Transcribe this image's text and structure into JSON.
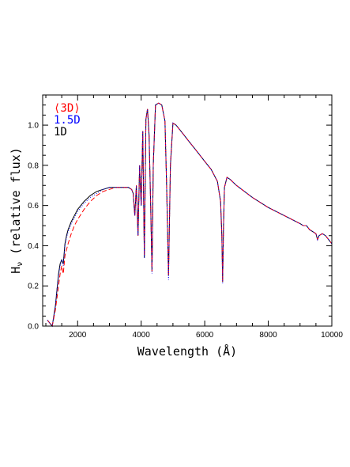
{
  "chart_data": {
    "type": "line",
    "title": "",
    "xlabel": "Wavelength (Å)",
    "ylabel_main": "H",
    "ylabel_sub": "ν",
    "ylabel_rest": " (relative flux)",
    "xlim": [
      900,
      10000
    ],
    "ylim": [
      0.0,
      1.15
    ],
    "x_ticks": [
      2000,
      4000,
      6000,
      8000,
      10000
    ],
    "x_tick_labels": [
      "2000",
      "4000",
      "6000",
      "8000",
      "10000"
    ],
    "y_ticks": [
      0.0,
      0.2,
      0.4,
      0.6,
      0.8,
      1.0
    ],
    "y_tick_labels": [
      "0.0",
      "0.2",
      "0.4",
      "0.6",
      "0.8",
      "1.0"
    ],
    "grid": false,
    "legend_position": "top-left",
    "series": [
      {
        "name": "⟨3D⟩",
        "color": "#ff0000",
        "style": "dashed",
        "x": [
          1050,
          1100,
          1150,
          1200,
          1250,
          1300,
          1350,
          1400,
          1450,
          1500,
          1550,
          1600,
          1650,
          1700,
          1800,
          1900,
          2000,
          2200,
          2400,
          2600,
          2800,
          3000,
          3200,
          3400,
          3600,
          3700,
          3750,
          3800,
          3850,
          3900,
          3950,
          4000,
          4050,
          4100,
          4150,
          4200,
          4250,
          4300,
          4340,
          4380,
          4450,
          4550,
          4650,
          4750,
          4800,
          4861,
          4920,
          5000,
          5100,
          5300,
          5500,
          5800,
          6000,
          6200,
          6400,
          6500,
          6540,
          6563,
          6590,
          6620,
          6700,
          6800,
          7000,
          7500,
          8000,
          8500,
          9000,
          9100,
          9200,
          9300,
          9400,
          9500,
          9550,
          9600,
          9700,
          9800,
          9900,
          10000
        ],
        "y": [
          0.03,
          0.02,
          0.01,
          0.0,
          0.04,
          0.08,
          0.14,
          0.2,
          0.26,
          0.3,
          0.26,
          0.35,
          0.38,
          0.41,
          0.46,
          0.5,
          0.53,
          0.58,
          0.62,
          0.65,
          0.67,
          0.68,
          0.69,
          0.69,
          0.69,
          0.68,
          0.66,
          0.55,
          0.7,
          0.45,
          0.8,
          0.6,
          0.97,
          0.35,
          1.03,
          1.08,
          0.95,
          0.6,
          0.27,
          0.8,
          1.1,
          1.11,
          1.1,
          1.02,
          0.7,
          0.25,
          0.8,
          1.01,
          1.0,
          0.96,
          0.92,
          0.86,
          0.82,
          0.78,
          0.72,
          0.62,
          0.45,
          0.22,
          0.5,
          0.69,
          0.74,
          0.73,
          0.7,
          0.64,
          0.59,
          0.55,
          0.51,
          0.5,
          0.5,
          0.48,
          0.47,
          0.46,
          0.43,
          0.45,
          0.46,
          0.45,
          0.43,
          0.41
        ]
      },
      {
        "name": "1.5D",
        "color": "#0000ff",
        "style": "dotted",
        "x": [
          1050,
          1100,
          1150,
          1200,
          1250,
          1300,
          1350,
          1400,
          1450,
          1500,
          1550,
          1600,
          1650,
          1700,
          1800,
          1900,
          2000,
          2200,
          2400,
          2600,
          2800,
          3000,
          3200,
          3400,
          3600,
          3700,
          3750,
          3800,
          3850,
          3900,
          3950,
          4000,
          4050,
          4100,
          4150,
          4200,
          4250,
          4300,
          4340,
          4380,
          4450,
          4550,
          4650,
          4750,
          4800,
          4861,
          4920,
          5000,
          5100,
          5300,
          5500,
          5800,
          6000,
          6200,
          6400,
          6500,
          6540,
          6563,
          6590,
          6620,
          6700,
          6800,
          7000,
          7500,
          8000,
          8500,
          9000,
          9100,
          9200,
          9300,
          9400,
          9500,
          9550,
          9600,
          9700,
          9800,
          9900,
          10000
        ],
        "y": [
          0.03,
          0.02,
          0.01,
          0.0,
          0.05,
          0.1,
          0.18,
          0.25,
          0.3,
          0.33,
          0.3,
          0.4,
          0.44,
          0.47,
          0.51,
          0.54,
          0.57,
          0.61,
          0.64,
          0.66,
          0.68,
          0.69,
          0.69,
          0.69,
          0.69,
          0.68,
          0.66,
          0.55,
          0.7,
          0.45,
          0.8,
          0.6,
          0.97,
          0.34,
          1.03,
          1.08,
          0.95,
          0.6,
          0.26,
          0.8,
          1.1,
          1.11,
          1.1,
          1.02,
          0.7,
          0.23,
          0.8,
          1.01,
          1.0,
          0.96,
          0.92,
          0.86,
          0.82,
          0.78,
          0.72,
          0.62,
          0.45,
          0.21,
          0.5,
          0.69,
          0.74,
          0.73,
          0.7,
          0.64,
          0.59,
          0.55,
          0.51,
          0.5,
          0.5,
          0.48,
          0.47,
          0.46,
          0.43,
          0.45,
          0.46,
          0.45,
          0.43,
          0.41
        ]
      },
      {
        "name": "1D",
        "color": "#000000",
        "style": "solid",
        "x": [
          1050,
          1100,
          1150,
          1200,
          1250,
          1300,
          1350,
          1400,
          1450,
          1500,
          1550,
          1600,
          1650,
          1700,
          1800,
          1900,
          2000,
          2200,
          2400,
          2600,
          2800,
          3000,
          3200,
          3400,
          3600,
          3700,
          3750,
          3800,
          3850,
          3900,
          3950,
          4000,
          4050,
          4100,
          4150,
          4200,
          4250,
          4300,
          4340,
          4380,
          4450,
          4550,
          4650,
          4750,
          4800,
          4861,
          4920,
          5000,
          5100,
          5300,
          5500,
          5800,
          6000,
          6200,
          6400,
          6500,
          6540,
          6563,
          6590,
          6620,
          6700,
          6800,
          7000,
          7500,
          8000,
          8500,
          9000,
          9100,
          9200,
          9300,
          9400,
          9500,
          9550,
          9600,
          9700,
          9800,
          9900,
          10000
        ],
        "y": [
          0.03,
          0.02,
          0.01,
          0.0,
          0.05,
          0.1,
          0.18,
          0.26,
          0.31,
          0.33,
          0.31,
          0.41,
          0.45,
          0.48,
          0.52,
          0.55,
          0.58,
          0.62,
          0.65,
          0.67,
          0.68,
          0.69,
          0.69,
          0.69,
          0.69,
          0.68,
          0.66,
          0.55,
          0.7,
          0.45,
          0.8,
          0.6,
          0.97,
          0.34,
          1.03,
          1.08,
          0.95,
          0.6,
          0.27,
          0.8,
          1.1,
          1.11,
          1.1,
          1.02,
          0.7,
          0.25,
          0.8,
          1.01,
          1.0,
          0.96,
          0.92,
          0.86,
          0.82,
          0.78,
          0.72,
          0.62,
          0.45,
          0.22,
          0.5,
          0.69,
          0.74,
          0.73,
          0.7,
          0.64,
          0.59,
          0.55,
          0.51,
          0.5,
          0.5,
          0.48,
          0.47,
          0.46,
          0.43,
          0.45,
          0.46,
          0.45,
          0.43,
          0.41
        ]
      }
    ]
  }
}
